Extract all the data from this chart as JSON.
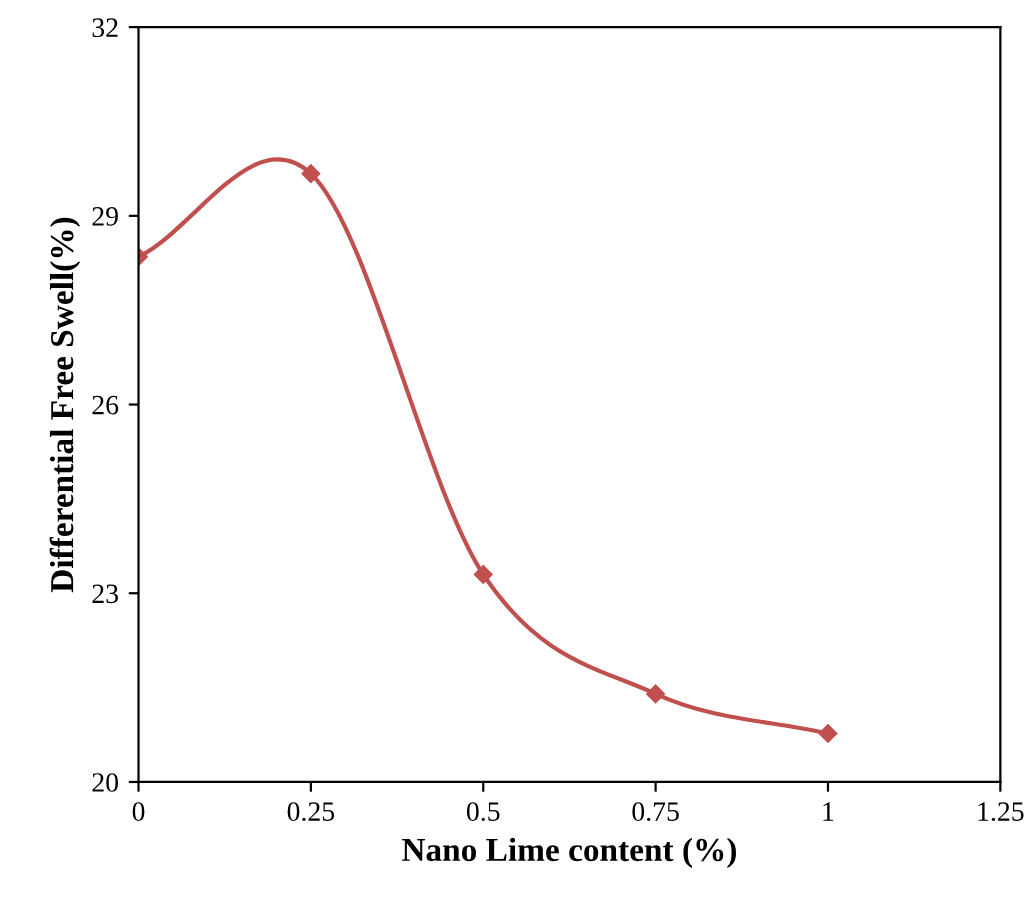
{
  "chart_data": {
    "type": "line",
    "xlabel": "Nano Lime content (%)",
    "ylabel": "Differential Free Swell(%)",
    "x": [
      0,
      0.25,
      0.5,
      0.75,
      1
    ],
    "series": [
      {
        "color": "#c0504d",
        "values": [
          28.35,
          29.67,
          23.3,
          21.4,
          20.77
        ]
      }
    ],
    "xlim": [
      0,
      1.25
    ],
    "xticks": [
      0,
      0.25,
      0.5,
      0.75,
      1,
      1.25
    ],
    "ylim": [
      20,
      32
    ],
    "yticks": [
      20,
      23,
      26,
      29,
      32
    ],
    "marker": "diamond",
    "line_style": "solid",
    "grid": false,
    "legend": false
  }
}
